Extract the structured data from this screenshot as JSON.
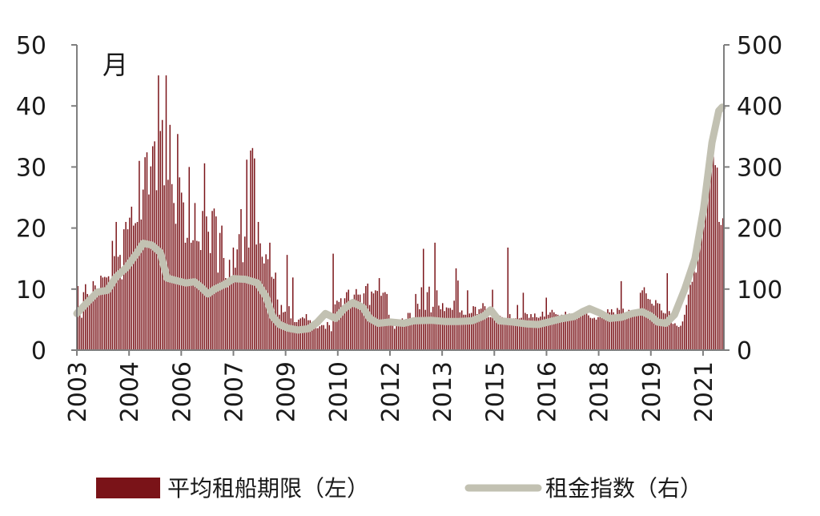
{
  "chart_data": {
    "type": "bar",
    "unit_label": "月",
    "x_tick_labels": [
      "2003",
      "2004",
      "2006",
      "2007",
      "2009",
      "2010",
      "2012",
      "2013",
      "2015",
      "2016",
      "2018",
      "2019",
      "2021"
    ],
    "y_left": {
      "ylim": [
        0,
        50
      ],
      "ticks": [
        "0",
        "10",
        "20",
        "30",
        "40",
        "50"
      ]
    },
    "y_right": {
      "ylim": [
        0,
        500
      ],
      "ticks": [
        "0",
        "100",
        "200",
        "300",
        "400",
        "500"
      ]
    },
    "series": [
      {
        "name": "平均租船期限（左）",
        "kind": "bar",
        "axis": "left",
        "color": "#7a1318",
        "values": [
          10.5,
          6.1,
          5.3,
          9.5,
          10.8,
          9.2,
          7.5,
          8.2,
          11.3,
          10.6,
          9.7,
          9.4,
          12.2,
          11.9,
          12.0,
          11.9,
          12.1,
          9.7,
          17.9,
          15.4,
          21.0,
          15.3,
          15.6,
          11.6,
          19.8,
          21.0,
          19.8,
          21.7,
          23.5,
          20.4,
          20.8,
          21.0,
          31.0,
          21.4,
          26.3,
          31.6,
          32.4,
          25.5,
          30.1,
          33.4,
          34.2,
          26.2,
          45.0,
          35.9,
          37.7,
          27.0,
          45.0,
          27.9,
          36.9,
          27.2,
          24.1,
          20.7,
          35.4,
          28.3,
          25.8,
          24.2,
          17.6,
          18.4,
          30.0,
          17.6,
          18.0,
          24.1,
          17.9,
          17.8,
          16.4,
          22.8,
          30.6,
          21.9,
          19.4,
          15.9,
          22.8,
          23.2,
          21.9,
          12.7,
          19.2,
          20.4,
          15.1,
          11.8,
          10.3,
          14.8,
          11.2,
          16.8,
          13.5,
          16.5,
          19.0,
          23.1,
          14.4,
          18.6,
          31.2,
          16.8,
          32.7,
          33.1,
          31.4,
          17.3,
          21.0,
          17.5,
          15.3,
          14.2,
          15.7,
          14.9,
          17.6,
          12.0,
          11.7,
          12.7,
          8.3,
          5.8,
          7.4,
          6.2,
          6.3,
          15.6,
          7.2,
          5.2,
          11.9,
          4.6,
          4.6,
          5.0,
          5.2,
          5.4,
          5.2,
          5.9,
          4.9,
          4.9,
          4.5,
          4.4,
          3.6,
          3.6,
          3.9,
          4.1,
          4.1,
          3.5,
          4.6,
          4.1,
          3.1,
          15.8,
          7.5,
          8.1,
          7.9,
          8.5,
          7.3,
          8.5,
          9.5,
          9.9,
          8.2,
          8.1,
          9.1,
          10.0,
          9.1,
          9.1,
          7.5,
          9.3,
          10.5,
          10.9,
          7.4,
          9.6,
          9.3,
          9.8,
          9.7,
          11.8,
          8.9,
          9.4,
          9.5,
          9.2,
          5.8,
          4.7,
          4.9,
          3.5,
          4.5,
          4.6,
          4.3,
          5.2,
          4.6,
          5.1,
          6.1,
          6.1,
          5.3,
          5.3,
          9.2,
          7.6,
          6.7,
          10.3,
          16.6,
          6.6,
          9.5,
          10.4,
          6.2,
          7.1,
          17.6,
          9.8,
          7.3,
          6.7,
          7.7,
          6.4,
          7.0,
          6.9,
          6.9,
          6.6,
          8.1,
          13.4,
          11.4,
          6.2,
          6.5,
          5.8,
          5.8,
          9.8,
          6.0,
          6.1,
          7.2,
          7.1,
          5.9,
          6.7,
          6.8,
          7.7,
          7.2,
          6.2,
          5.4,
          5.4,
          9.9,
          5.6,
          6.1,
          5.6,
          5.6,
          5.4,
          5.2,
          5.1,
          16.8,
          5.9,
          5.0,
          5.2,
          5.2,
          7.4,
          5.2,
          5.3,
          9.4,
          6.1,
          5.9,
          5.3,
          5.9,
          5.4,
          6.0,
          5.4,
          5.3,
          5.5,
          6.3,
          5.5,
          8.6,
          5.8,
          6.2,
          6.6,
          6.2,
          5.9,
          5.8,
          5.5,
          5.8,
          5.3,
          6.3,
          5.6,
          6.0,
          5.7,
          5.6,
          5.4,
          5.3,
          5.3,
          5.9,
          5.8,
          6.1,
          6.0,
          5.7,
          5.3,
          5.2,
          5.3,
          5.0,
          5.4,
          5.6,
          5.8,
          5.6,
          6.1,
          6.7,
          6.2,
          6.7,
          6.2,
          5.5,
          6.9,
          6.6,
          11.3,
          6.8,
          6.0,
          6.3,
          6.6,
          5.9,
          5.9,
          5.8,
          6.1,
          6.5,
          9.4,
          9.8,
          10.3,
          9.3,
          8.4,
          8.3,
          7.6,
          7.3,
          8.2,
          7.7,
          7.6,
          6.5,
          6.1,
          6.0,
          12.6,
          6.4,
          5.3,
          4.3,
          4.4,
          4.0,
          3.8,
          4.0,
          4.7,
          5.8,
          7.4,
          9.1,
          10.7,
          11.2,
          13.0,
          12.7,
          16.6,
          19.8,
          19.6,
          22.1,
          24.2,
          28.1,
          28.9,
          29.5,
          31.7,
          30.3,
          29.9,
          21.0,
          20.5,
          21.6
        ]
      },
      {
        "name": "租金指数（右）",
        "kind": "line",
        "axis": "right",
        "color": "#c2c1b2",
        "points": [
          [
            2003.0,
            60
          ],
          [
            2003.3,
            78
          ],
          [
            2003.6,
            95
          ],
          [
            2003.9,
            98
          ],
          [
            2004.15,
            120
          ],
          [
            2004.45,
            135
          ],
          [
            2004.75,
            158
          ],
          [
            2004.95,
            175
          ],
          [
            2005.2,
            172
          ],
          [
            2005.45,
            160
          ],
          [
            2005.65,
            118
          ],
          [
            2005.85,
            115
          ],
          [
            2006.2,
            110
          ],
          [
            2006.45,
            112
          ],
          [
            2006.65,
            103
          ],
          [
            2006.85,
            92
          ],
          [
            2007.05,
            100
          ],
          [
            2007.35,
            108
          ],
          [
            2007.6,
            117
          ],
          [
            2007.95,
            116
          ],
          [
            2008.3,
            110
          ],
          [
            2008.55,
            88
          ],
          [
            2008.75,
            55
          ],
          [
            2008.95,
            42
          ],
          [
            2009.2,
            36
          ],
          [
            2009.5,
            33
          ],
          [
            2009.8,
            35
          ],
          [
            2010.05,
            45
          ],
          [
            2010.3,
            60
          ],
          [
            2010.6,
            52
          ],
          [
            2010.85,
            68
          ],
          [
            2011.1,
            78
          ],
          [
            2011.4,
            70
          ],
          [
            2011.6,
            52
          ],
          [
            2011.85,
            44
          ],
          [
            2012.2,
            46
          ],
          [
            2012.6,
            44
          ],
          [
            2012.9,
            48
          ],
          [
            2013.4,
            49
          ],
          [
            2013.8,
            47
          ],
          [
            2014.2,
            47
          ],
          [
            2014.6,
            48
          ],
          [
            2014.95,
            56
          ],
          [
            2015.15,
            66
          ],
          [
            2015.4,
            48
          ],
          [
            2015.8,
            46
          ],
          [
            2016.2,
            43
          ],
          [
            2016.55,
            42
          ],
          [
            2016.85,
            46
          ],
          [
            2017.2,
            51
          ],
          [
            2017.6,
            55
          ],
          [
            2017.85,
            63
          ],
          [
            2018.05,
            68
          ],
          [
            2018.35,
            61
          ],
          [
            2018.65,
            52
          ],
          [
            2019.0,
            54
          ],
          [
            2019.3,
            60
          ],
          [
            2019.6,
            63
          ],
          [
            2019.85,
            56
          ],
          [
            2020.05,
            46
          ],
          [
            2020.3,
            44
          ],
          [
            2020.55,
            58
          ],
          [
            2020.85,
            100
          ],
          [
            2021.15,
            150
          ],
          [
            2021.4,
            230
          ],
          [
            2021.65,
            340
          ],
          [
            2021.85,
            392
          ],
          [
            2021.95,
            398
          ]
        ]
      }
    ],
    "legend": {
      "placement": "bottom",
      "items": [
        {
          "label": "平均租船期限（左）",
          "color": "#7a1318",
          "kind": "bar"
        },
        {
          "label": "租金指数（右）",
          "color": "#c2c1b2",
          "kind": "line"
        }
      ]
    },
    "grid": false
  }
}
